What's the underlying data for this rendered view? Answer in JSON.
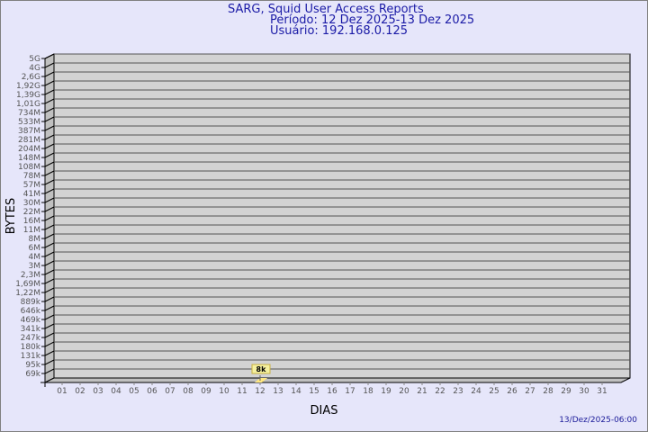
{
  "header": {
    "title": "SARG, Squid User Access Reports",
    "period": "Período: 12 Dez 2025-13 Dez 2025",
    "user": "Usuário: 192.168.0.125"
  },
  "footer": {
    "timestamp": "13/Dez/2025-06:00"
  },
  "colors": {
    "background": "#e6e6fa",
    "wall": "#d3d3d3",
    "side_wall": "#c0c0c0",
    "bar": "#ffe680",
    "label_box": "#f5f0a0",
    "title": "#1a1aa6"
  },
  "chart_data": {
    "type": "bar",
    "xlabel": "DIAS",
    "ylabel": "BYTES",
    "yscale": "log",
    "grid": true,
    "y_tick_labels": [
      "5G",
      "4G",
      "2,6G",
      "1,92G",
      "1,39G",
      "1,01G",
      "734M",
      "533M",
      "387M",
      "281M",
      "204M",
      "148M",
      "108M",
      "78M",
      "57M",
      "41M",
      "30M",
      "22M",
      "16M",
      "11M",
      "8M",
      "6M",
      "4M",
      "3M",
      "2,3M",
      "1,69M",
      "1,22M",
      "889k",
      "646k",
      "469k",
      "341k",
      "247k",
      "180k",
      "131k",
      "95k",
      "69k"
    ],
    "categories": [
      "01",
      "02",
      "03",
      "04",
      "05",
      "06",
      "07",
      "08",
      "09",
      "10",
      "11",
      "12",
      "13",
      "14",
      "15",
      "16",
      "17",
      "18",
      "19",
      "20",
      "21",
      "22",
      "23",
      "24",
      "25",
      "26",
      "27",
      "28",
      "29",
      "30",
      "31"
    ],
    "series": [
      {
        "values": [
          null,
          null,
          null,
          null,
          null,
          null,
          null,
          null,
          null,
          null,
          null,
          8000,
          null,
          null,
          null,
          null,
          null,
          null,
          null,
          null,
          null,
          null,
          null,
          null,
          null,
          null,
          null,
          null,
          null,
          null,
          null
        ],
        "labels": {
          "12": "8k"
        }
      }
    ]
  }
}
